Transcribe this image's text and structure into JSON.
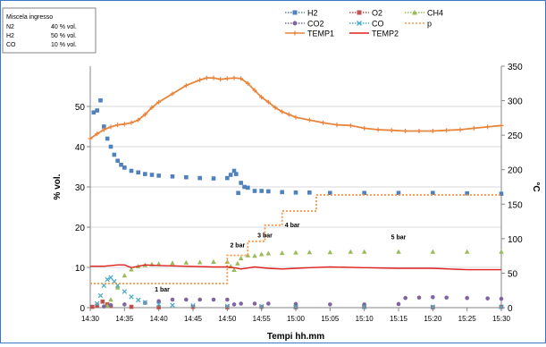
{
  "chart_data": {
    "type": "line",
    "info_box": {
      "title": "Miscela ingresso",
      "rows": [
        {
          "gas": "N2",
          "value": "40 % vol."
        },
        {
          "gas": "H2",
          "value": "50 % vol."
        },
        {
          "gas": "CO",
          "value": "10 % vol."
        }
      ]
    },
    "xlabel": "Tempi hh.mm",
    "ylabel": "% vol.",
    "y2label": "°C",
    "x_ticks": [
      "14:30",
      "14:35",
      "14:40",
      "14:45",
      "14:50",
      "14:55",
      "15:00",
      "15:05",
      "15:10",
      "15:15",
      "15:20",
      "15:25",
      "15:30"
    ],
    "xlim_minutes": [
      0,
      60
    ],
    "ylim": [
      0,
      60
    ],
    "y_ticks": [
      0,
      10,
      20,
      30,
      40,
      50
    ],
    "y2lim": [
      0,
      350
    ],
    "y2_ticks": [
      0,
      50,
      100,
      150,
      200,
      250,
      300,
      350
    ],
    "legend_rows": [
      [
        "H2",
        "O2",
        "CH4"
      ],
      [
        "CO2",
        "CO",
        "p"
      ],
      [
        "TEMP1",
        "TEMP2"
      ]
    ],
    "pressure_labels": [
      {
        "text": "1 bar",
        "x": 10.5,
        "y": 4.0
      },
      {
        "text": "2 bar",
        "x": 21.5,
        "y": 15.0
      },
      {
        "text": "3 bar",
        "x": 25.5,
        "y": 17.5
      },
      {
        "text": "4 bar",
        "x": 29.5,
        "y": 20.0
      },
      {
        "text": "5 bar",
        "x": 45.0,
        "y": 17.0
      }
    ],
    "series": [
      {
        "name": "H2",
        "axis": "left",
        "style": "markers",
        "marker": "square",
        "color": "#4f81bd",
        "x": [
          0.5,
          1,
          1.5,
          2,
          2.5,
          3,
          3.5,
          4,
          4.5,
          5,
          6,
          7,
          8,
          9,
          10,
          12,
          14,
          16,
          18,
          20,
          20.5,
          21,
          21.3,
          21.6,
          22,
          22.5,
          23,
          24,
          25,
          26,
          28,
          30,
          32,
          35,
          40,
          45,
          50,
          55,
          60
        ],
        "y": [
          48.5,
          49,
          51.5,
          45,
          42,
          40,
          38,
          36.5,
          35.5,
          34.8,
          34,
          33.6,
          33.2,
          33,
          32.8,
          32.6,
          32.4,
          32.2,
          32.1,
          32.2,
          33,
          34,
          33.2,
          28.5,
          31,
          30,
          29.8,
          29,
          29,
          28.9,
          28.7,
          28.6,
          28.6,
          28.5,
          28.5,
          28.5,
          28.5,
          28.4,
          28.3
        ]
      },
      {
        "name": "O2",
        "axis": "left",
        "style": "markers",
        "marker": "square",
        "color": "#c0504d",
        "x": [
          0.3,
          1,
          1.8,
          2.5,
          3,
          6,
          10,
          15,
          20,
          25,
          30,
          40,
          50,
          60
        ],
        "y": [
          0.2,
          0.5,
          1.5,
          0.8,
          0.4,
          0.2,
          0.1,
          0.2,
          0.1,
          0.2,
          0.1,
          0.2,
          0.1,
          0.2
        ]
      },
      {
        "name": "CH4",
        "axis": "left",
        "style": "markers",
        "marker": "triangle",
        "color": "#9bbb59",
        "x": [
          2.5,
          3,
          4,
          5,
          6,
          7,
          8,
          9,
          10,
          12,
          14,
          16,
          18,
          20,
          20.5,
          21,
          21.5,
          22,
          23,
          24,
          25,
          26,
          28,
          30,
          32,
          35,
          38,
          40,
          45,
          50,
          55,
          60
        ],
        "y": [
          0.5,
          2,
          5,
          8,
          9.5,
          10.3,
          10.6,
          10.8,
          10.9,
          11.1,
          11.2,
          11.3,
          11.4,
          11.4,
          10.3,
          9.4,
          11,
          12.3,
          13,
          12.9,
          13.3,
          13.5,
          13.6,
          13.7,
          13.8,
          13.8,
          13.9,
          13.9,
          13.9,
          13.9,
          13.9,
          13.9
        ]
      },
      {
        "name": "CO2",
        "axis": "left",
        "style": "markers",
        "marker": "circle",
        "color": "#8064a2",
        "x": [
          2,
          3,
          5,
          8,
          10,
          12,
          14,
          16,
          18,
          20,
          21,
          22,
          24,
          26,
          30,
          35,
          40,
          45,
          46,
          48,
          50,
          52,
          55,
          58,
          60
        ],
        "y": [
          0.3,
          0.6,
          0.8,
          1.2,
          1.6,
          2,
          2,
          2,
          2,
          2,
          0.8,
          1,
          1,
          1,
          0.9,
          0.8,
          0.8,
          0.9,
          2.4,
          2.5,
          2.6,
          2.5,
          2.4,
          2.3,
          2.2
        ]
      },
      {
        "name": "CO",
        "axis": "left",
        "style": "markers",
        "marker": "x",
        "color": "#4bacc6",
        "x": [
          1,
          1.5,
          2,
          2.5,
          3,
          3.5,
          4,
          5,
          6,
          7,
          8,
          10,
          12,
          15,
          20,
          25,
          30,
          40,
          50,
          60
        ],
        "y": [
          1,
          3,
          5.5,
          7,
          7.5,
          6.5,
          5.5,
          4,
          2.7,
          1.9,
          1.3,
          0.8,
          0.6,
          0.5,
          0.4,
          0.3,
          0.2,
          0.2,
          0.2,
          0.2
        ]
      },
      {
        "name": "p",
        "axis": "left",
        "style": "dotted",
        "color": "#f79646",
        "x": [
          0,
          20,
          20,
          23,
          23,
          25.5,
          25.5,
          28,
          28,
          33,
          33,
          60
        ],
        "y": [
          6,
          6,
          13,
          13,
          16.5,
          16.5,
          20.5,
          20.5,
          24,
          24,
          28,
          28
        ]
      },
      {
        "name": "TEMP1",
        "axis": "right",
        "style": "line_markers",
        "marker": "plus",
        "color": "#e9843b",
        "x": [
          0,
          1,
          2,
          3,
          4,
          5,
          6,
          7,
          8,
          9,
          10,
          12,
          14,
          16,
          17,
          18,
          19,
          20,
          21,
          22,
          23,
          24,
          25,
          26,
          27,
          28,
          29,
          30,
          32,
          34,
          36,
          38,
          40,
          42,
          44,
          46,
          48,
          50,
          52,
          54,
          56,
          58,
          60
        ],
        "y": [
          245,
          252,
          258,
          262,
          265,
          266,
          268,
          272,
          280,
          290,
          298,
          310,
          322,
          330,
          333,
          333,
          331,
          332,
          333,
          332,
          325,
          315,
          305,
          298,
          290,
          284,
          280,
          276,
          272,
          268,
          265,
          264,
          260,
          258,
          257,
          256,
          256,
          256,
          257,
          258,
          260,
          262,
          264
        ]
      },
      {
        "name": "TEMP2",
        "axis": "right",
        "style": "line",
        "color": "#e0201d",
        "x": [
          0,
          2,
          4,
          5,
          6,
          7,
          8,
          10,
          14,
          18,
          20,
          21,
          22,
          24,
          26,
          28,
          30,
          32,
          35,
          40,
          45,
          50,
          55,
          60
        ],
        "y": [
          60,
          60,
          62,
          62,
          58,
          60,
          62,
          61,
          60,
          59,
          59,
          58,
          56,
          59,
          57,
          56,
          57,
          58,
          59,
          58,
          57,
          57,
          55,
          55
        ]
      }
    ]
  }
}
